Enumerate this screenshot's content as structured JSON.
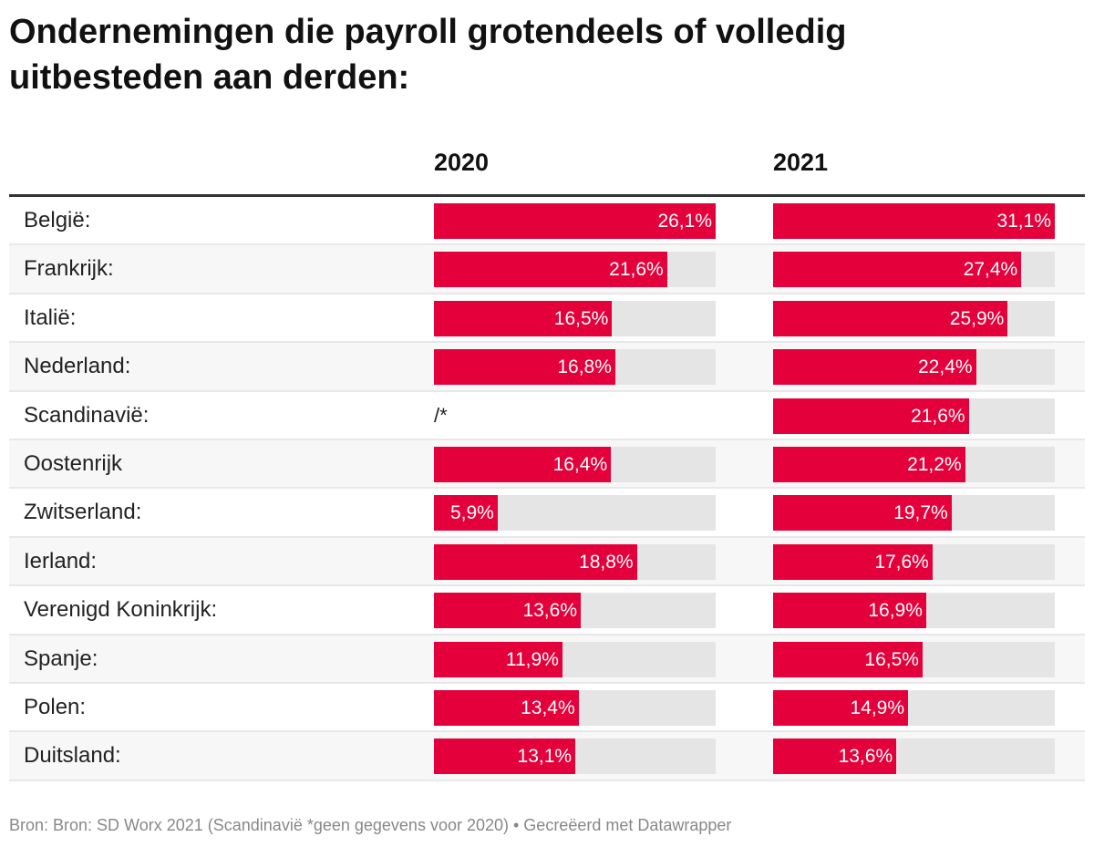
{
  "title": "Ondernemingen die payroll grotendeels of volledig uitbesteden aan derden:",
  "footer": "Bron: Bron: SD Worx 2021 (Scandinavië *geen gegevens voor 2020) • Gecreëerd met Datawrapper",
  "chart_data": {
    "type": "table",
    "columns": [
      "2020",
      "2021"
    ],
    "bar_color": "#e4003a",
    "track_color": "#e5e5e5",
    "rows": [
      {
        "label": "België:",
        "v2020": 26.1,
        "t2020": "26,1%",
        "v2021": 31.1,
        "t2021": "31,1%"
      },
      {
        "label": "Frankrijk:",
        "v2020": 21.6,
        "t2020": "21,6%",
        "v2021": 27.4,
        "t2021": "27,4%"
      },
      {
        "label": "Italië:",
        "v2020": 16.5,
        "t2020": "16,5%",
        "v2021": 25.9,
        "t2021": "25,9%"
      },
      {
        "label": "Nederland:",
        "v2020": 16.8,
        "t2020": "16,8%",
        "v2021": 22.4,
        "t2021": "22,4%"
      },
      {
        "label": "Scandinavië:",
        "v2020": null,
        "t2020": "/*",
        "v2021": 21.6,
        "t2021": "21,6%"
      },
      {
        "label": "Oostenrijk",
        "v2020": 16.4,
        "t2020": "16,4%",
        "v2021": 21.2,
        "t2021": "21,2%"
      },
      {
        "label": "Zwitserland:",
        "v2020": 5.9,
        "t2020": "5,9%",
        "v2021": 19.7,
        "t2021": "19,7%"
      },
      {
        "label": "Ierland:",
        "v2020": 18.8,
        "t2020": "18,8%",
        "v2021": 17.6,
        "t2021": "17,6%"
      },
      {
        "label": "Verenigd Koninkrijk:",
        "v2020": 13.6,
        "t2020": "13,6%",
        "v2021": 16.9,
        "t2021": "16,9%"
      },
      {
        "label": "Spanje:",
        "v2020": 11.9,
        "t2020": "11,9%",
        "v2021": 16.5,
        "t2021": "16,5%"
      },
      {
        "label": "Polen:",
        "v2020": 13.4,
        "t2020": "13,4%",
        "v2021": 14.9,
        "t2021": "14,9%"
      },
      {
        "label": "Duitsland:",
        "v2020": 13.1,
        "t2020": "13,1%",
        "v2021": 13.6,
        "t2021": "13,6%"
      }
    ]
  }
}
